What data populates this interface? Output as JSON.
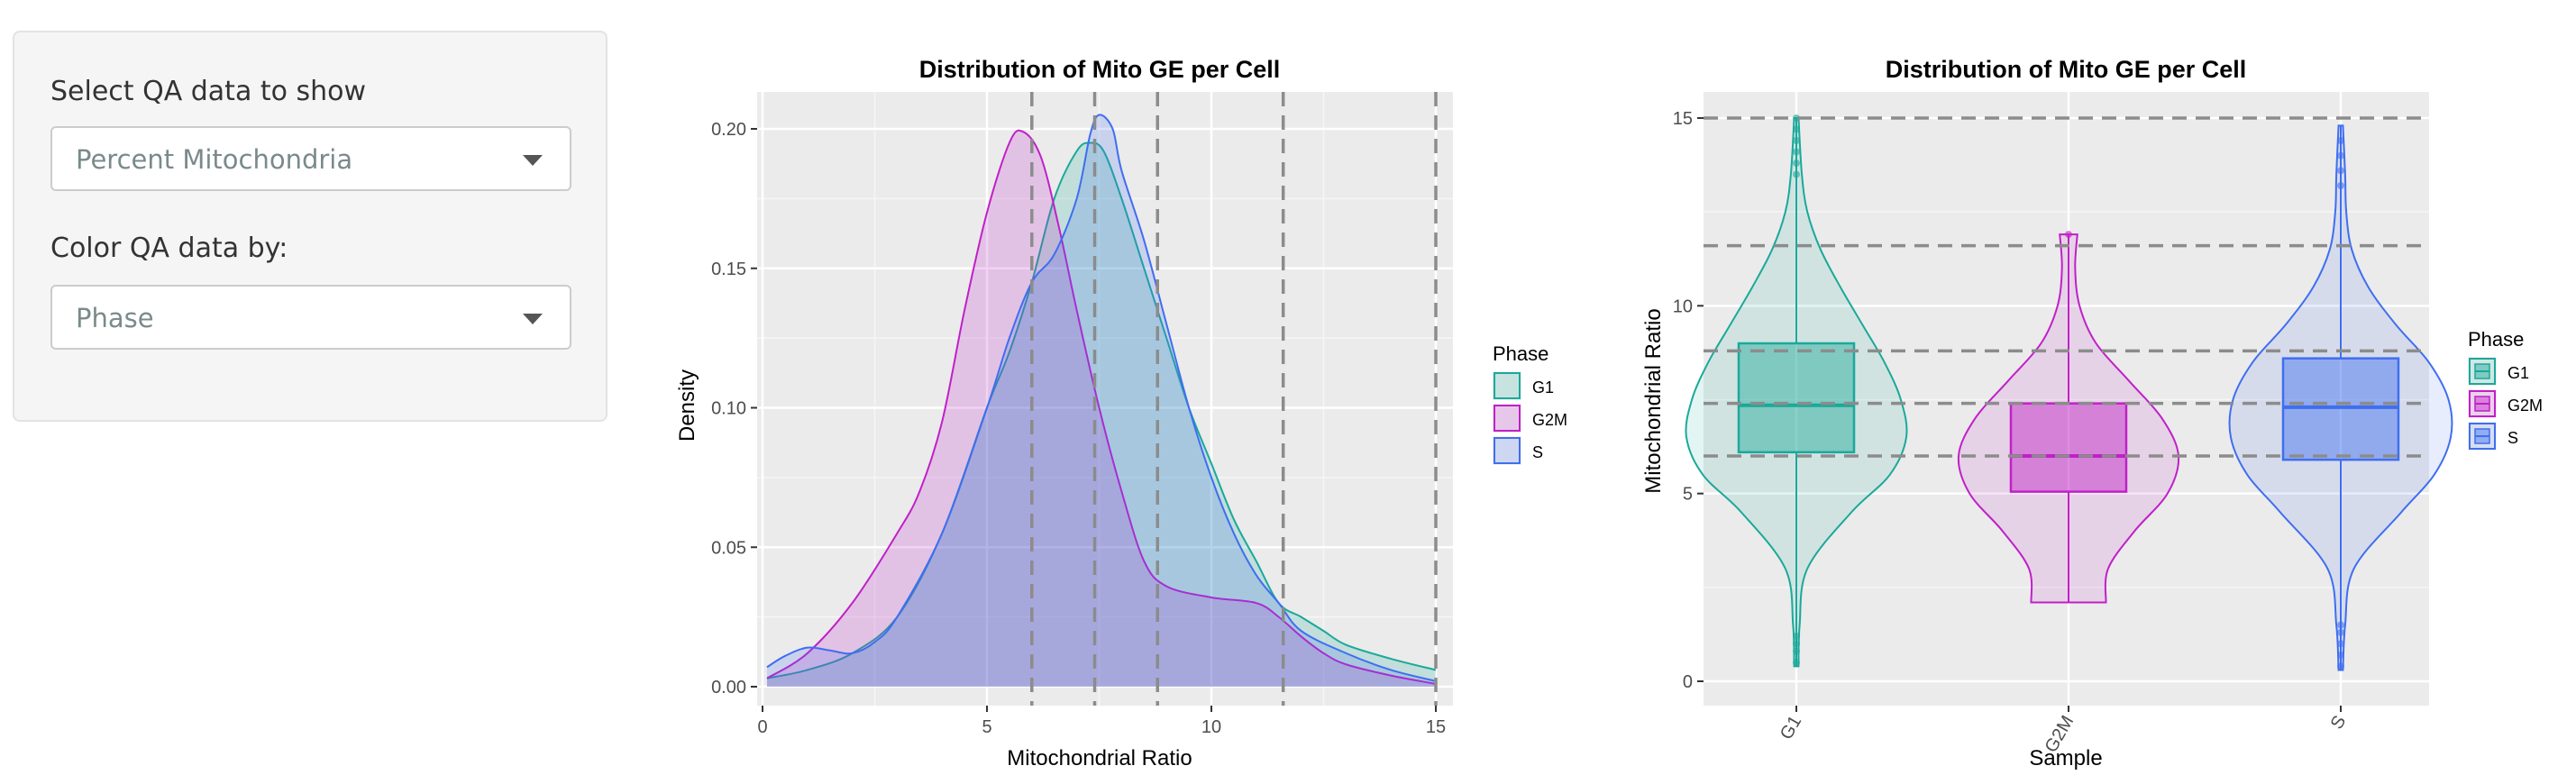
{
  "controls": {
    "qa_label": "Select QA data to show",
    "qa_value": "Percent Mitochondria",
    "color_label": "Color QA data by:",
    "color_value": "Phase"
  },
  "colors": {
    "G1": "#1aa99a",
    "G2M": "#c020c8",
    "S": "#3f6ef0"
  },
  "icons": [
    "chevron-down-icon"
  ],
  "chart_data": [
    {
      "type": "area",
      "title": "Distribution of Mito GE per Cell",
      "xlabel": "Mitochondrial Ratio",
      "ylabel": "Density",
      "xlim": [
        0,
        15
      ],
      "ylim": [
        0,
        0.2
      ],
      "x_ticks": [
        "0",
        "5",
        "10",
        "15"
      ],
      "y_ticks": [
        "0.00",
        "0.05",
        "0.10",
        "0.15",
        "0.20"
      ],
      "vlines": [
        6,
        7.4,
        8.8,
        11.6,
        15
      ],
      "legend": {
        "title": "Phase",
        "entries": [
          "G1",
          "G2M",
          "S"
        ],
        "position": "right"
      },
      "series": [
        {
          "name": "G1",
          "x": [
            0.1,
            1,
            2,
            3,
            4,
            5,
            5.5,
            6,
            6.5,
            7,
            7.3,
            7.6,
            8,
            8.5,
            9,
            9.5,
            10,
            10.5,
            11,
            11.5,
            12,
            12.5,
            13,
            14,
            15
          ],
          "values": [
            0.003,
            0.006,
            0.012,
            0.025,
            0.055,
            0.1,
            0.12,
            0.145,
            0.175,
            0.192,
            0.195,
            0.192,
            0.175,
            0.15,
            0.125,
            0.1,
            0.08,
            0.06,
            0.045,
            0.03,
            0.025,
            0.02,
            0.015,
            0.01,
            0.006
          ]
        },
        {
          "name": "G2M",
          "x": [
            0.1,
            1,
            2,
            3,
            3.5,
            4,
            4.5,
            5,
            5.5,
            5.8,
            6.2,
            6.6,
            7,
            7.5,
            8,
            8.5,
            9,
            10,
            11,
            11.5,
            12,
            12.5,
            13,
            14,
            15
          ],
          "values": [
            0.003,
            0.012,
            0.03,
            0.055,
            0.07,
            0.095,
            0.135,
            0.17,
            0.195,
            0.199,
            0.19,
            0.165,
            0.135,
            0.1,
            0.07,
            0.045,
            0.036,
            0.032,
            0.03,
            0.025,
            0.018,
            0.012,
            0.008,
            0.004,
            0.001
          ]
        },
        {
          "name": "S",
          "x": [
            0.1,
            0.5,
            1,
            1.5,
            2,
            2.5,
            3,
            4,
            5,
            5.5,
            6,
            6.5,
            7,
            7.3,
            7.5,
            7.8,
            8,
            8.5,
            9,
            9.5,
            10,
            10.5,
            11,
            11.5,
            12,
            13,
            14,
            15
          ],
          "values": [
            0.007,
            0.011,
            0.014,
            0.013,
            0.012,
            0.016,
            0.025,
            0.055,
            0.1,
            0.125,
            0.145,
            0.155,
            0.175,
            0.198,
            0.205,
            0.2,
            0.185,
            0.16,
            0.13,
            0.1,
            0.075,
            0.055,
            0.04,
            0.03,
            0.02,
            0.012,
            0.006,
            0.002
          ]
        }
      ]
    },
    {
      "type": "violin",
      "title": "Distribution of Mito GE per Cell",
      "xlabel": "Sample",
      "ylabel": "Mitochondrial Ratio",
      "ylim": [
        0,
        15
      ],
      "y_ticks": [
        "0",
        "5",
        "10",
        "15"
      ],
      "categories": [
        "G1",
        "G2M",
        "S"
      ],
      "hlines": [
        6,
        7.4,
        8.8,
        11.6,
        15
      ],
      "legend": {
        "title": "Phase",
        "entries": [
          "G1",
          "G2M",
          "S"
        ],
        "position": "right"
      },
      "series": [
        {
          "name": "G1",
          "min": 0.4,
          "max": 15,
          "q1": 6.1,
          "median": 7.35,
          "q3": 9.0,
          "profile": [
            [
              0.4,
              0.02
            ],
            [
              1.5,
              0.03
            ],
            [
              3,
              0.1
            ],
            [
              4.5,
              0.5
            ],
            [
              5.5,
              0.85
            ],
            [
              6.5,
              1.0
            ],
            [
              7.5,
              0.95
            ],
            [
              8.5,
              0.8
            ],
            [
              9.5,
              0.6
            ],
            [
              10.5,
              0.4
            ],
            [
              11.5,
              0.22
            ],
            [
              12.5,
              0.1
            ],
            [
              13.5,
              0.05
            ],
            [
              15,
              0.02
            ]
          ],
          "outliers": [
            0.5,
            0.8,
            1.0,
            1.2,
            13.5,
            13.8,
            14.1,
            14.4,
            14.7,
            15.0
          ]
        },
        {
          "name": "G2M",
          "min": 2.1,
          "max": 11.9,
          "q1": 5.05,
          "median": 6.0,
          "q3": 7.4,
          "profile": [
            [
              2.1,
              0.34
            ],
            [
              3,
              0.36
            ],
            [
              4,
              0.6
            ],
            [
              5,
              0.9
            ],
            [
              6,
              1.0
            ],
            [
              7,
              0.85
            ],
            [
              8,
              0.55
            ],
            [
              9,
              0.25
            ],
            [
              10,
              0.1
            ],
            [
              11,
              0.06
            ],
            [
              11.9,
              0.08
            ]
          ],
          "outliers": [
            11.9
          ]
        },
        {
          "name": "S",
          "min": 0.3,
          "max": 14.8,
          "q1": 5.9,
          "median": 7.3,
          "q3": 8.6,
          "profile": [
            [
              0.3,
              0.02
            ],
            [
              1.5,
              0.04
            ],
            [
              3,
              0.12
            ],
            [
              4.5,
              0.55
            ],
            [
              5.5,
              0.85
            ],
            [
              6.5,
              1.0
            ],
            [
              7.5,
              0.98
            ],
            [
              8.5,
              0.8
            ],
            [
              9.5,
              0.5
            ],
            [
              10.5,
              0.25
            ],
            [
              11.5,
              0.1
            ],
            [
              12.5,
              0.05
            ],
            [
              13.5,
              0.04
            ],
            [
              14.8,
              0.02
            ]
          ],
          "outliers": [
            0.4,
            0.7,
            1.0,
            1.3,
            1.5,
            13.2,
            13.6,
            14.0,
            14.4
          ]
        }
      ]
    }
  ]
}
